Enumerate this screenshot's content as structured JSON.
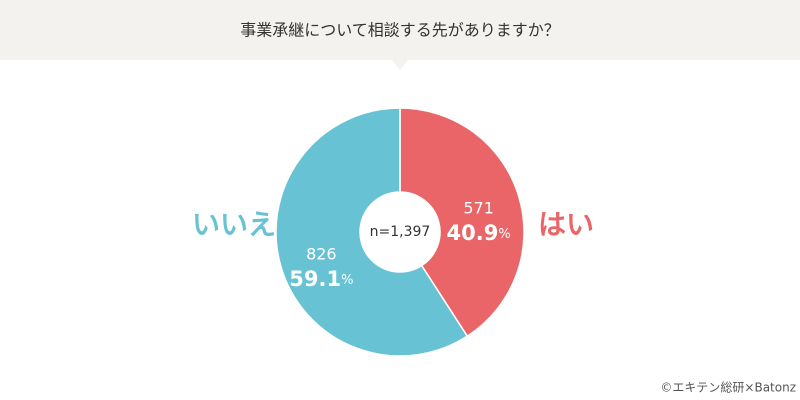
{
  "chart_data": {
    "type": "donut",
    "title": "事業承継について相談する先がありますか？",
    "categories": [
      "はい",
      "いいえ"
    ],
    "values": [
      571,
      826
    ],
    "colors": [
      "#e96567",
      "#67c2d3"
    ],
    "percentages": [
      40.9,
      59.1
    ],
    "percent_unit": "%",
    "center_label": "n=1,397",
    "source": "©エキテン総研×Batonz"
  }
}
